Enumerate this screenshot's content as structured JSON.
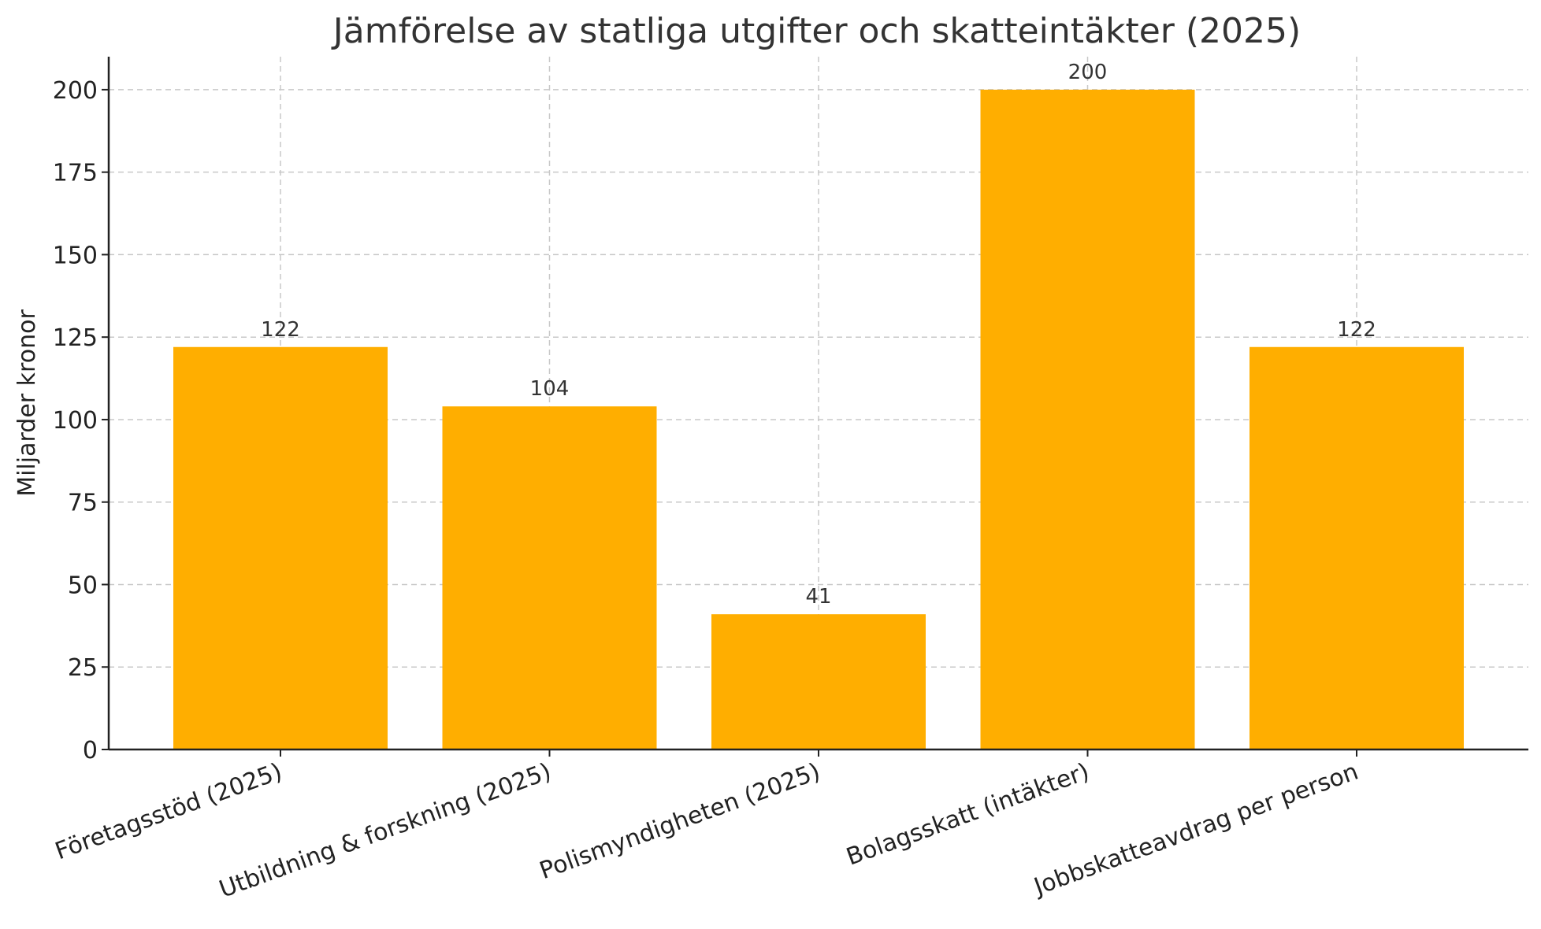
{
  "chart_data": {
    "type": "bar",
    "title": "Jämförelse av statliga utgifter och skatteintäkter (2025)",
    "xlabel": "",
    "ylabel": "Miljarder kronor",
    "categories": [
      "Företagsstöd (2025)",
      "Utbildning & forskning (2025)",
      "Polismyndigheten (2025)",
      "Bolagsskatt (intäkter)",
      "Jobbskatteavdrag per person"
    ],
    "values": [
      122,
      104,
      41,
      200,
      122
    ],
    "data_labels": [
      "122",
      "104",
      "41",
      "200",
      "122"
    ],
    "ylim": [
      0,
      210
    ],
    "yticks": [
      0,
      25,
      50,
      75,
      100,
      125,
      150,
      175,
      200
    ],
    "ytick_labels": [
      "0",
      "25",
      "50",
      "75",
      "100",
      "125",
      "150",
      "175",
      "200"
    ],
    "grid": true,
    "colors": {
      "bar": "#FFAE00"
    }
  }
}
